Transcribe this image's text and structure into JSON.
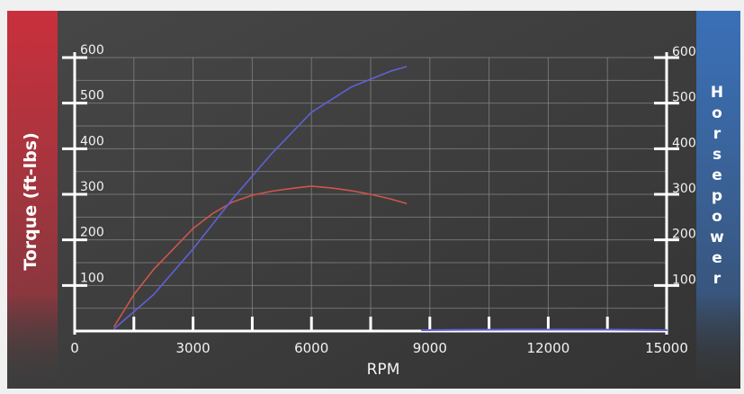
{
  "chart_data": {
    "type": "line",
    "xlabel": "RPM",
    "ylabel_left": "Torque (ft-lbs)",
    "ylabel_right": "Horsepower",
    "xlim": [
      0,
      15000
    ],
    "ylim_left": [
      0,
      600
    ],
    "ylim_right": [
      0,
      600
    ],
    "x_ticks": [
      "0",
      "3000",
      "6000",
      "9000",
      "12000",
      "15000"
    ],
    "y_left_ticks": [
      "100",
      "200",
      "300",
      "400",
      "500",
      "600"
    ],
    "y_right_ticks": [
      "100",
      "200",
      "300",
      "400",
      "500",
      "600"
    ],
    "grid": true,
    "colors": {
      "torque": "#d0554a",
      "horsepower": "#6060d8",
      "panel": "#3f3f3f",
      "left_band": "#c8303c",
      "right_band": "#3a70b8",
      "grid": "#8a8a8a",
      "axis": "#ffffff"
    },
    "series": [
      {
        "key": "torque",
        "axis": "left",
        "x": [
          1000,
          1500,
          2000,
          2500,
          3000,
          3500,
          4000,
          4500,
          5000,
          5500,
          6000,
          6500,
          7000,
          7500,
          8000,
          8400
        ],
        "y": [
          10,
          80,
          135,
          180,
          225,
          258,
          283,
          298,
          307,
          313,
          318,
          314,
          308,
          300,
          290,
          280
        ]
      },
      {
        "key": "horsepower",
        "axis": "right",
        "x": [
          1000,
          2000,
          3000,
          4000,
          5000,
          6000,
          7000,
          8000,
          8400
        ],
        "y": [
          5,
          80,
          180,
          290,
          390,
          480,
          535,
          570,
          580
        ]
      },
      {
        "key": "baseline",
        "axis": "right",
        "x": [
          8800,
          11000,
          13500,
          15000
        ],
        "y": [
          2,
          3,
          3,
          2
        ]
      }
    ]
  }
}
